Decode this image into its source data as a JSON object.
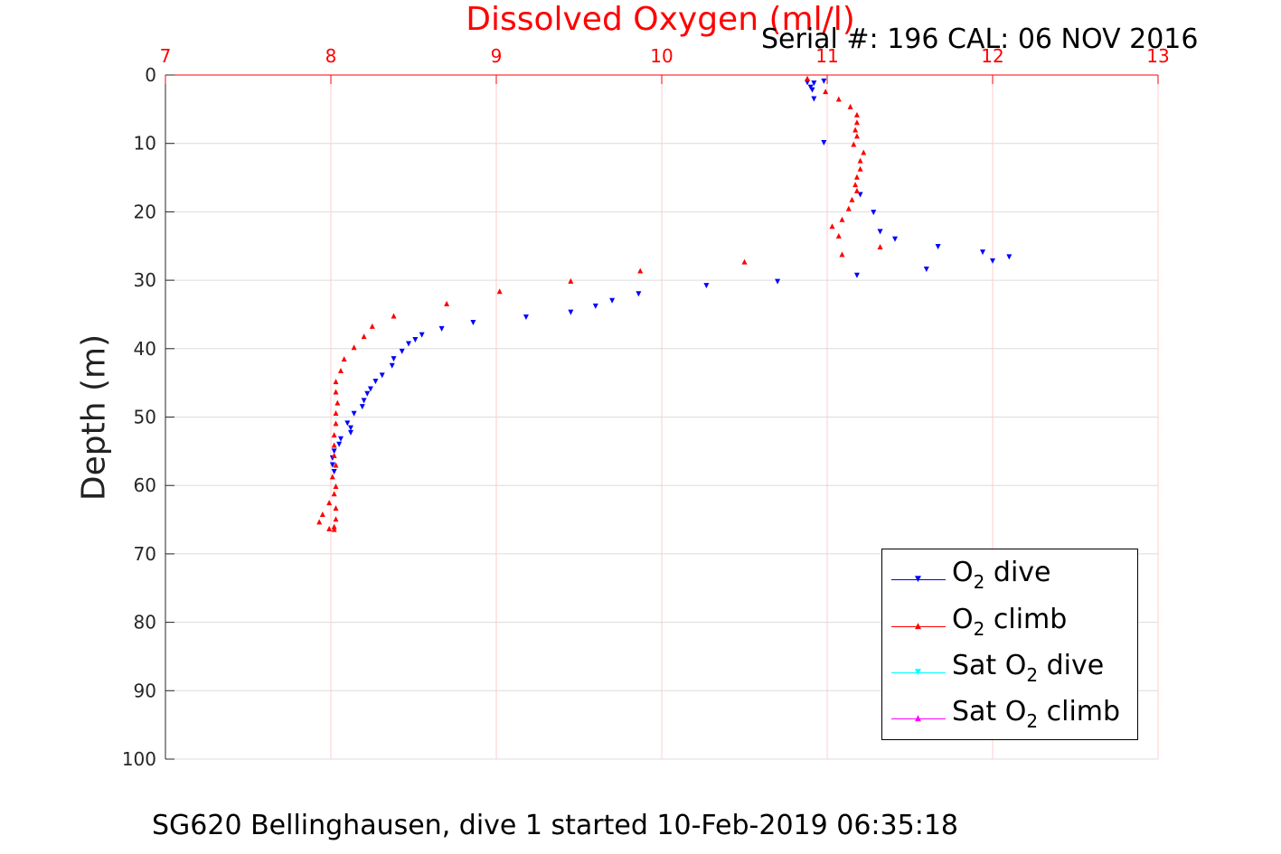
{
  "chart_data": {
    "type": "scatter",
    "title": "Dissolved Oxygen (ml/l)",
    "subtitle": "Serial #: 196  CAL: 06 NOV 2016",
    "caption": "SG620 Bellinghausen, dive 1 started 10-Feb-2019 06:35:18",
    "ylabel": "Depth (m)",
    "xlabel": "",
    "xlim": [
      7,
      13
    ],
    "ylim": [
      0,
      100
    ],
    "y_reversed": true,
    "x_axis_position": "top",
    "xticks": [
      7,
      8,
      9,
      10,
      11,
      12,
      13
    ],
    "yticks": [
      0,
      10,
      20,
      30,
      40,
      50,
      60,
      70,
      80,
      90,
      100
    ],
    "grid": true,
    "legend_position": "bottom-right",
    "colors": {
      "title": "#ff0000",
      "xaxis": "#ff0000",
      "grid_x": "#ffcccc",
      "grid_y": "#dcdcdc"
    },
    "series": [
      {
        "name": "O2 dive",
        "color": "#0000ff",
        "marker": "triangle-down",
        "points": [
          [
            10.98,
            0.9
          ],
          [
            10.92,
            1.2
          ],
          [
            10.88,
            1.1
          ],
          [
            10.9,
            1.8
          ],
          [
            10.91,
            2.2
          ],
          [
            10.92,
            3.5
          ],
          [
            10.98,
            9.9
          ],
          [
            11.2,
            17.5
          ],
          [
            11.28,
            20.1
          ],
          [
            11.32,
            22.9
          ],
          [
            11.41,
            24.0
          ],
          [
            11.67,
            25.1
          ],
          [
            11.94,
            25.9
          ],
          [
            12.1,
            26.6
          ],
          [
            12.0,
            27.2
          ],
          [
            11.6,
            28.4
          ],
          [
            11.18,
            29.3
          ],
          [
            10.7,
            30.2
          ],
          [
            10.27,
            30.8
          ],
          [
            9.86,
            32.0
          ],
          [
            9.7,
            33.0
          ],
          [
            9.6,
            33.8
          ],
          [
            9.45,
            34.7
          ],
          [
            9.18,
            35.4
          ],
          [
            8.86,
            36.2
          ],
          [
            8.67,
            37.1
          ],
          [
            8.55,
            38.0
          ],
          [
            8.51,
            38.7
          ],
          [
            8.47,
            39.3
          ],
          [
            8.43,
            40.4
          ],
          [
            8.38,
            41.5
          ],
          [
            8.37,
            42.5
          ],
          [
            8.31,
            43.9
          ],
          [
            8.27,
            44.8
          ],
          [
            8.24,
            45.9
          ],
          [
            8.22,
            46.6
          ],
          [
            8.2,
            47.6
          ],
          [
            8.19,
            48.5
          ],
          [
            8.14,
            49.5
          ],
          [
            8.1,
            50.9
          ],
          [
            8.12,
            51.6
          ],
          [
            8.12,
            52.3
          ],
          [
            8.06,
            53.2
          ],
          [
            8.05,
            54.0
          ],
          [
            8.02,
            55.0
          ],
          [
            8.01,
            56.0
          ],
          [
            8.01,
            57.0
          ],
          [
            8.02,
            58.0
          ]
        ]
      },
      {
        "name": "O2 climb",
        "color": "#ff0000",
        "marker": "triangle-up",
        "points": [
          [
            10.88,
            0.5
          ],
          [
            10.99,
            2.4
          ],
          [
            11.07,
            3.5
          ],
          [
            11.14,
            4.6
          ],
          [
            11.18,
            5.8
          ],
          [
            11.18,
            6.9
          ],
          [
            11.17,
            8.0
          ],
          [
            11.18,
            8.9
          ],
          [
            11.16,
            10.1
          ],
          [
            11.22,
            11.3
          ],
          [
            11.2,
            12.5
          ],
          [
            11.2,
            13.7
          ],
          [
            11.18,
            14.9
          ],
          [
            11.17,
            16.0
          ],
          [
            11.18,
            16.9
          ],
          [
            11.15,
            18.2
          ],
          [
            11.13,
            19.5
          ],
          [
            11.09,
            21.1
          ],
          [
            11.03,
            22.1
          ],
          [
            11.07,
            23.5
          ],
          [
            11.32,
            25.1
          ],
          [
            11.09,
            26.2
          ],
          [
            10.5,
            27.3
          ],
          [
            9.87,
            28.6
          ],
          [
            9.45,
            30.1
          ],
          [
            9.02,
            31.6
          ],
          [
            8.7,
            33.4
          ],
          [
            8.38,
            35.2
          ],
          [
            8.25,
            36.7
          ],
          [
            8.2,
            38.2
          ],
          [
            8.14,
            39.8
          ],
          [
            8.08,
            41.5
          ],
          [
            8.06,
            43.2
          ],
          [
            8.03,
            44.8
          ],
          [
            8.03,
            46.3
          ],
          [
            8.04,
            47.9
          ],
          [
            8.03,
            49.4
          ],
          [
            8.03,
            50.9
          ],
          [
            8.02,
            52.6
          ],
          [
            8.02,
            54.1
          ],
          [
            8.02,
            55.6
          ],
          [
            8.03,
            57.0
          ],
          [
            8.01,
            58.7
          ],
          [
            8.03,
            60.1
          ],
          [
            8.02,
            61.2
          ],
          [
            7.99,
            62.5
          ],
          [
            8.03,
            63.3
          ],
          [
            7.95,
            64.2
          ],
          [
            8.03,
            64.9
          ],
          [
            7.93,
            65.3
          ],
          [
            8.02,
            66.0
          ],
          [
            7.99,
            66.3
          ],
          [
            8.02,
            66.4
          ]
        ]
      },
      {
        "name": "Sat O2 dive",
        "color": "#00ffff",
        "marker": "triangle-down",
        "points": []
      },
      {
        "name": "Sat O2 climb",
        "color": "#ff00ff",
        "marker": "triangle-up",
        "points": []
      }
    ]
  },
  "legend": {
    "items": [
      {
        "pre": "O",
        "sub": "2",
        "post": " dive",
        "color": "#0000ff",
        "marker": "▼"
      },
      {
        "pre": "O",
        "sub": "2",
        "post": " climb",
        "color": "#ff0000",
        "marker": "▲"
      },
      {
        "pre": "Sat O",
        "sub": "2",
        "post": " dive",
        "color": "#00ffff",
        "marker": "▼"
      },
      {
        "pre": "Sat O",
        "sub": "2",
        "post": " climb",
        "color": "#ff00ff",
        "marker": "▲"
      }
    ]
  }
}
